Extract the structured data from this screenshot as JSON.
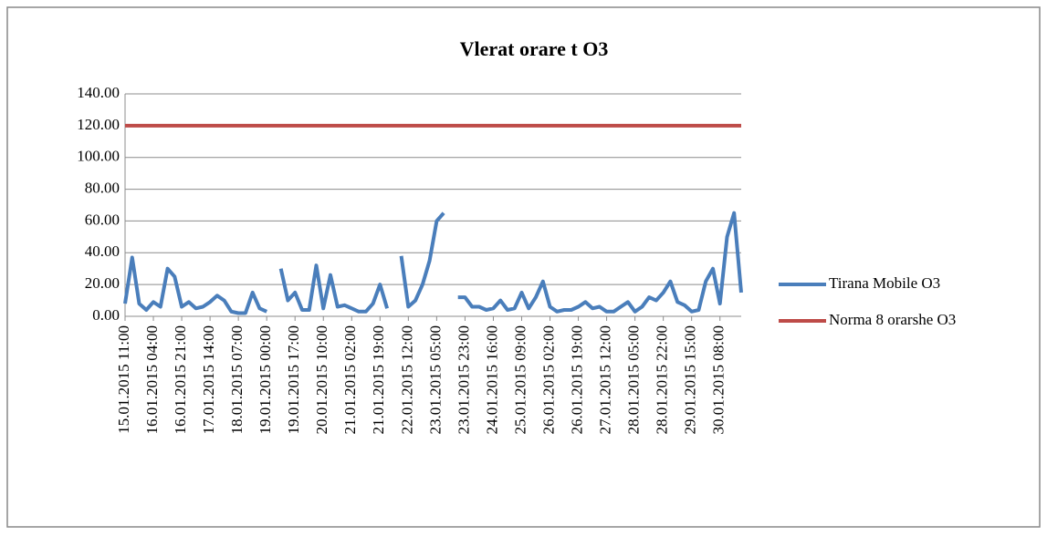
{
  "chart_data": {
    "type": "line",
    "title": "Vlerat orare t O3",
    "categories": [
      "15.01.2015 11:00",
      null,
      null,
      null,
      "16.01.2015 04:00",
      null,
      null,
      null,
      "16.01.2015 21:00",
      null,
      null,
      null,
      "17.01.2015 14:00",
      null,
      null,
      null,
      "18.01.2015 07:00",
      null,
      null,
      null,
      "19.01.2015 00:00",
      null,
      null,
      null,
      "19.01.2015 17:00",
      null,
      null,
      null,
      "20.01.2015 10:00",
      null,
      null,
      null,
      "21.01.2015 02:00",
      null,
      null,
      null,
      "21.01.2015 19:00",
      null,
      null,
      null,
      "22.01.2015 12:00",
      null,
      null,
      null,
      "23.01.2015 05:00",
      null,
      null,
      null,
      "23.01.2015 23:00",
      null,
      null,
      null,
      "24.01.2015 16:00",
      null,
      null,
      null,
      "25.01.2015 09:00",
      null,
      null,
      null,
      "26.01.2015 02:00",
      null,
      null,
      null,
      "26.01.2015 19:00",
      null,
      null,
      null,
      "27.01.2015 12:00",
      null,
      null,
      null,
      "28.01.2015 05:00",
      null,
      null,
      null,
      "28.01.2015 22:00",
      null,
      null,
      null,
      "29.01.2015 15:00",
      null,
      null,
      null,
      "30.01.2015 08:00",
      null,
      null,
      null
    ],
    "series": [
      {
        "name": "Tirana Mobile O3",
        "color": "#4a7ebb",
        "values": [
          8,
          37,
          8,
          4,
          9,
          6,
          30,
          25,
          6,
          9,
          5,
          6,
          9,
          13,
          10,
          3,
          2,
          2,
          15,
          5,
          3,
          null,
          30,
          10,
          15,
          4,
          4,
          32,
          5,
          26,
          6,
          7,
          5,
          3,
          3,
          8,
          20,
          5,
          null,
          38,
          6,
          10,
          20,
          35,
          60,
          65,
          null,
          12,
          12,
          6,
          6,
          4,
          5,
          10,
          4,
          5,
          15,
          5,
          12,
          22,
          6,
          3,
          4,
          4,
          6,
          9,
          5,
          6,
          3,
          3,
          6,
          9,
          3,
          6,
          12,
          10,
          15,
          22,
          9,
          7,
          3,
          4,
          22,
          30,
          8,
          50,
          65,
          15
        ]
      },
      {
        "name": "Norma 8 orarshe O3",
        "color": "#be4b48",
        "values": [
          120,
          120,
          120,
          120,
          120,
          120,
          120,
          120,
          120,
          120,
          120,
          120,
          120,
          120,
          120,
          120,
          120,
          120,
          120,
          120,
          120,
          120,
          120,
          120,
          120,
          120,
          120,
          120,
          120,
          120,
          120,
          120,
          120,
          120,
          120,
          120,
          120,
          120,
          120,
          120,
          120,
          120,
          120,
          120,
          120,
          120,
          120,
          120,
          120,
          120,
          120,
          120,
          120,
          120,
          120,
          120,
          120,
          120,
          120,
          120,
          120,
          120,
          120,
          120,
          120,
          120,
          120,
          120,
          120,
          120,
          120,
          120,
          120,
          120,
          120,
          120,
          120,
          120,
          120,
          120,
          120,
          120,
          120,
          120,
          120,
          120,
          120,
          120
        ]
      }
    ],
    "ylim": [
      0,
      140
    ],
    "yticks": [
      {
        "value": 0,
        "label": "0.00"
      },
      {
        "value": 20,
        "label": "20.00"
      },
      {
        "value": 40,
        "label": "40.00"
      },
      {
        "value": 60,
        "label": "60.00"
      },
      {
        "value": 80,
        "label": "80.00"
      },
      {
        "value": 100,
        "label": "100.00"
      },
      {
        "value": 120,
        "label": "120.00"
      },
      {
        "value": 140,
        "label": "140.00"
      }
    ],
    "grid": true,
    "legend": "right"
  }
}
